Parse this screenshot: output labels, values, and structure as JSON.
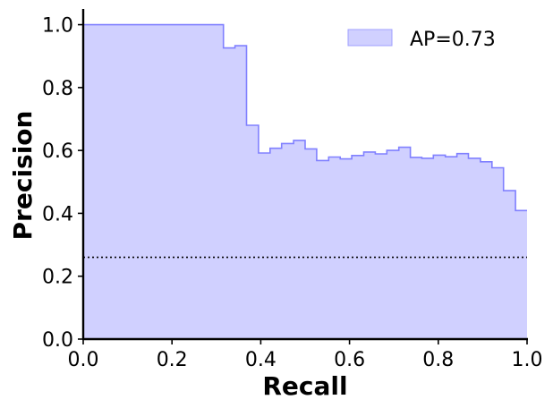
{
  "chart_data": {
    "type": "area",
    "xlabel": "Recall",
    "ylabel": "Precision",
    "xlim": [
      0,
      1
    ],
    "ylim": [
      0,
      1.05
    ],
    "xticks": [
      "0.0",
      "0.2",
      "0.4",
      "0.6",
      "0.8",
      "1.0"
    ],
    "xtick_values": [
      0,
      0.2,
      0.4,
      0.6,
      0.8,
      1.0
    ],
    "yticks": [
      "0.0",
      "0.2",
      "0.4",
      "0.6",
      "0.8",
      "1.0"
    ],
    "ytick_values": [
      0,
      0.2,
      0.4,
      0.6,
      0.8,
      1.0
    ],
    "legend": {
      "label": "AP=0.73",
      "position": "top-right"
    },
    "series": [
      {
        "name": "AP=0.73",
        "style": "step-post filled",
        "color": "#8080ff",
        "fill_color": "#d0d0ff",
        "recall": [
          0.0,
          0.316,
          0.342,
          0.368,
          0.395,
          0.421,
          0.447,
          0.474,
          0.5,
          0.526,
          0.553,
          0.579,
          0.605,
          0.632,
          0.658,
          0.684,
          0.711,
          0.737,
          0.763,
          0.789,
          0.816,
          0.842,
          0.868,
          0.895,
          0.921,
          0.947,
          0.974,
          1.0
        ],
        "precision": [
          1.0,
          0.926,
          0.933,
          0.68,
          0.592,
          0.607,
          0.622,
          0.632,
          0.605,
          0.568,
          0.579,
          0.573,
          0.584,
          0.595,
          0.589,
          0.6,
          0.61,
          0.578,
          0.575,
          0.585,
          0.58,
          0.59,
          0.575,
          0.564,
          0.545,
          0.472,
          0.409,
          0.409
        ]
      }
    ],
    "baseline": {
      "value": 0.26,
      "style": "dotted",
      "color": "#000000"
    },
    "grid": false
  }
}
